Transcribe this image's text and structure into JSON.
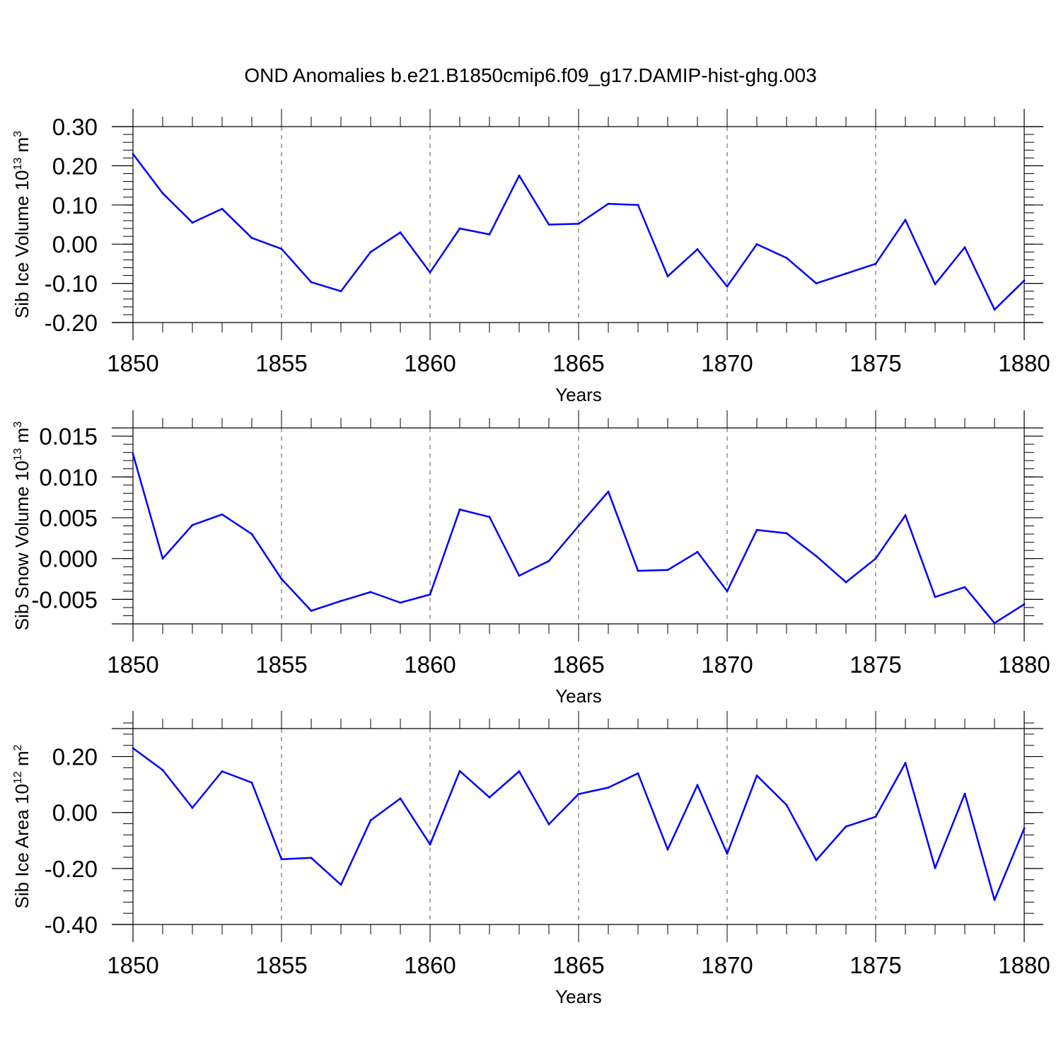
{
  "figure": {
    "title": "OND Anomalies b.e21.B1850cmip6.f09_g17.DAMIP-hist-ghg.003"
  },
  "chart_data": [
    {
      "type": "line",
      "title": "OND Anomalies b.e21.B1850cmip6.f09_g17.DAMIP-hist-ghg.003",
      "xlabel": "Years",
      "ylabel_main": "Sib Ice Volume 10",
      "ylabel_exp": "13",
      "ylabel_unit": " m",
      "ylabel_unit_exp": "3",
      "xlim": [
        1850,
        1880
      ],
      "ylim": [
        -0.2,
        0.3
      ],
      "x_ticks": [
        1850,
        1855,
        1860,
        1865,
        1870,
        1875,
        1880
      ],
      "x_tick_labels": [
        "1850",
        "1855",
        "1860",
        "1865",
        "1870",
        "1875",
        "1880"
      ],
      "y_ticks": [
        -0.2,
        -0.1,
        0.0,
        0.1,
        0.2,
        0.3
      ],
      "y_tick_labels": [
        "-0.20",
        "-0.10",
        "0.00",
        "0.10",
        "0.20",
        "0.30"
      ],
      "y_minor_step": 0.02,
      "grid": "vertical dashed at major x ticks",
      "line_color": "#0000ff",
      "x": [
        1850,
        1851,
        1852,
        1853,
        1854,
        1855,
        1856,
        1857,
        1858,
        1859,
        1860,
        1861,
        1862,
        1863,
        1864,
        1865,
        1866,
        1867,
        1868,
        1869,
        1870,
        1871,
        1872,
        1873,
        1874,
        1875,
        1876,
        1877,
        1878,
        1879,
        1880
      ],
      "values": [
        0.23,
        0.13,
        0.055,
        0.09,
        0.016,
        -0.012,
        -0.097,
        -0.12,
        -0.02,
        0.03,
        -0.072,
        0.04,
        0.025,
        0.175,
        0.05,
        0.052,
        0.103,
        0.1,
        -0.082,
        -0.013,
        -0.108,
        0.0,
        -0.035,
        -0.1,
        -0.075,
        -0.05,
        0.062,
        -0.102,
        -0.008,
        -0.167,
        -0.093
      ]
    },
    {
      "type": "line",
      "xlabel": "Years",
      "ylabel_main": "Sib Snow Volume 10",
      "ylabel_exp": "13",
      "ylabel_unit": " m",
      "ylabel_unit_exp": "3",
      "xlim": [
        1850,
        1880
      ],
      "ylim": [
        -0.008,
        0.016
      ],
      "x_ticks": [
        1850,
        1855,
        1860,
        1865,
        1870,
        1875,
        1880
      ],
      "x_tick_labels": [
        "1850",
        "1855",
        "1860",
        "1865",
        "1870",
        "1875",
        "1880"
      ],
      "y_ticks": [
        -0.005,
        0.0,
        0.005,
        0.01,
        0.015
      ],
      "y_tick_labels": [
        "-0.005",
        "0.000",
        "0.005",
        "0.010",
        "0.015"
      ],
      "y_minor_step": 0.001,
      "grid": "vertical dashed at major x ticks",
      "line_color": "#0000ff",
      "x": [
        1850,
        1851,
        1852,
        1853,
        1854,
        1855,
        1856,
        1857,
        1858,
        1859,
        1860,
        1861,
        1862,
        1863,
        1864,
        1865,
        1866,
        1867,
        1868,
        1869,
        1870,
        1871,
        1872,
        1873,
        1874,
        1875,
        1876,
        1877,
        1878,
        1879,
        1880
      ],
      "values": [
        0.0128,
        0.0,
        0.0041,
        0.0054,
        0.003,
        -0.0025,
        -0.0064,
        -0.0052,
        -0.0041,
        -0.0054,
        -0.0044,
        0.006,
        0.0051,
        -0.0021,
        -0.0003,
        0.004,
        0.0082,
        -0.0015,
        -0.0014,
        0.0008,
        -0.004,
        0.0035,
        0.0031,
        0.0003,
        -0.0029,
        0.0,
        0.0053,
        -0.0047,
        -0.0035,
        -0.0079,
        -0.0056
      ]
    },
    {
      "type": "line",
      "xlabel": "Years",
      "ylabel_main": "Sib Ice Area 10",
      "ylabel_exp": "12",
      "ylabel_unit": " m",
      "ylabel_unit_exp": "2",
      "xlim": [
        1850,
        1880
      ],
      "ylim": [
        -0.4,
        0.3
      ],
      "x_ticks": [
        1850,
        1855,
        1860,
        1865,
        1870,
        1875,
        1880
      ],
      "x_tick_labels": [
        "1850",
        "1855",
        "1860",
        "1865",
        "1870",
        "1875",
        "1880"
      ],
      "y_ticks": [
        -0.4,
        -0.2,
        0.0,
        0.2
      ],
      "y_tick_labels": [
        "-0.40",
        "-0.20",
        "0.00",
        "0.20"
      ],
      "y_minor_step": 0.04,
      "grid": "vertical dashed at major x ticks",
      "line_color": "#0000ff",
      "x": [
        1850,
        1851,
        1852,
        1853,
        1854,
        1855,
        1856,
        1857,
        1858,
        1859,
        1860,
        1861,
        1862,
        1863,
        1864,
        1865,
        1866,
        1867,
        1868,
        1869,
        1870,
        1871,
        1872,
        1873,
        1874,
        1875,
        1876,
        1877,
        1878,
        1879,
        1880
      ],
      "values": [
        0.23,
        0.152,
        0.017,
        0.147,
        0.107,
        -0.167,
        -0.162,
        -0.258,
        -0.028,
        0.05,
        -0.114,
        0.148,
        0.054,
        0.147,
        -0.042,
        0.066,
        0.089,
        0.14,
        -0.132,
        0.098,
        -0.147,
        0.132,
        0.027,
        -0.17,
        -0.05,
        -0.015,
        0.177,
        -0.198,
        0.067,
        -0.312,
        -0.057
      ]
    }
  ]
}
